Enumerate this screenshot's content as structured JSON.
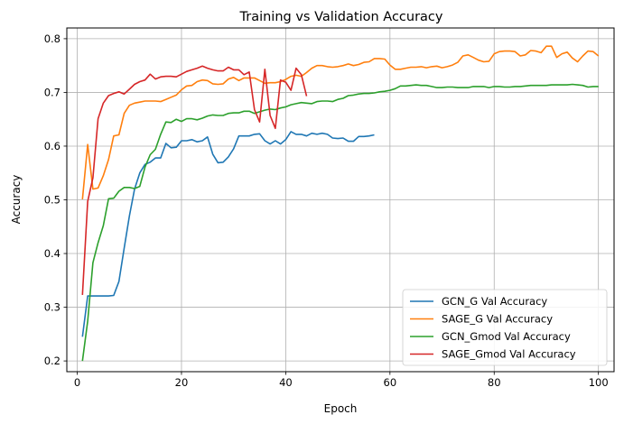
{
  "chart_data": {
    "type": "line",
    "title": "Training vs Validation Accuracy",
    "xlabel": "Epoch",
    "ylabel": "Accuracy",
    "xlim": [
      -2,
      103
    ],
    "ylim": [
      0.18,
      0.82
    ],
    "xticks": [
      0,
      20,
      40,
      60,
      80,
      100
    ],
    "yticks": [
      0.2,
      0.3,
      0.4,
      0.5,
      0.6,
      0.7,
      0.8
    ],
    "grid": true,
    "legend_position": "lower-right",
    "series": [
      {
        "name": "GCN_G Val Accuracy",
        "color": "#1f77b4",
        "x": [
          1,
          2,
          3,
          4,
          5,
          6,
          7,
          8,
          9,
          10,
          11,
          12,
          13,
          14,
          15,
          16,
          17,
          18,
          19,
          20,
          21,
          22,
          23,
          24,
          25,
          26,
          27,
          28,
          29,
          30,
          31,
          32,
          33,
          34,
          35,
          36,
          37,
          38,
          39,
          40,
          41,
          42,
          43,
          44,
          45,
          46,
          47,
          48,
          49,
          50,
          51,
          52,
          53,
          54,
          55,
          56,
          57
        ],
        "y": [
          0.245,
          0.321,
          0.321,
          0.321,
          0.321,
          0.321,
          0.322,
          0.348,
          0.41,
          0.47,
          0.52,
          0.55,
          0.566,
          0.57,
          0.578,
          0.578,
          0.605,
          0.597,
          0.598,
          0.61,
          0.61,
          0.612,
          0.608,
          0.61,
          0.617,
          0.585,
          0.569,
          0.57,
          0.58,
          0.595,
          0.619,
          0.619,
          0.619,
          0.622,
          0.623,
          0.61,
          0.604,
          0.61,
          0.604,
          0.612,
          0.627,
          0.622,
          0.622,
          0.619,
          0.624,
          0.622,
          0.624,
          0.622,
          0.615,
          0.614,
          0.615,
          0.609,
          0.609,
          0.618,
          0.618,
          0.619,
          0.621
        ]
      },
      {
        "name": "SAGE_G Val Accuracy",
        "color": "#ff7f0e",
        "x": [
          1,
          2,
          3,
          4,
          5,
          6,
          7,
          8,
          9,
          10,
          11,
          12,
          13,
          14,
          15,
          16,
          17,
          18,
          19,
          20,
          21,
          22,
          23,
          24,
          25,
          26,
          27,
          28,
          29,
          30,
          31,
          32,
          33,
          34,
          35,
          36,
          37,
          38,
          39,
          40,
          41,
          42,
          43,
          44,
          45,
          46,
          47,
          48,
          49,
          50,
          51,
          52,
          53,
          54,
          55,
          56,
          57,
          58,
          59,
          60,
          61,
          62,
          63,
          64,
          65,
          66,
          67,
          68,
          69,
          70,
          71,
          72,
          73,
          74,
          75,
          76,
          77,
          78,
          79,
          80,
          81,
          82,
          83,
          84,
          85,
          86,
          87,
          88,
          89,
          90,
          91,
          92,
          93,
          94,
          95,
          96,
          97,
          98,
          99,
          100
        ],
        "y": [
          0.501,
          0.603,
          0.52,
          0.522,
          0.545,
          0.575,
          0.619,
          0.621,
          0.661,
          0.676,
          0.68,
          0.682,
          0.684,
          0.684,
          0.684,
          0.683,
          0.687,
          0.691,
          0.695,
          0.705,
          0.712,
          0.713,
          0.72,
          0.723,
          0.722,
          0.716,
          0.715,
          0.716,
          0.725,
          0.728,
          0.722,
          0.727,
          0.727,
          0.727,
          0.722,
          0.717,
          0.718,
          0.718,
          0.72,
          0.724,
          0.73,
          0.732,
          0.73,
          0.737,
          0.745,
          0.75,
          0.75,
          0.748,
          0.747,
          0.748,
          0.75,
          0.753,
          0.75,
          0.752,
          0.756,
          0.757,
          0.763,
          0.763,
          0.762,
          0.751,
          0.743,
          0.743,
          0.745,
          0.747,
          0.747,
          0.748,
          0.746,
          0.748,
          0.749,
          0.746,
          0.748,
          0.751,
          0.756,
          0.768,
          0.77,
          0.765,
          0.76,
          0.757,
          0.758,
          0.772,
          0.776,
          0.777,
          0.777,
          0.776,
          0.768,
          0.77,
          0.778,
          0.777,
          0.774,
          0.786,
          0.786,
          0.765,
          0.772,
          0.775,
          0.764,
          0.757,
          0.768,
          0.777,
          0.776,
          0.768
        ]
      },
      {
        "name": "GCN_Gmod Val Accuracy",
        "color": "#2ca02c",
        "x": [
          1,
          2,
          3,
          4,
          5,
          6,
          7,
          8,
          9,
          10,
          11,
          12,
          13,
          14,
          15,
          16,
          17,
          18,
          19,
          20,
          21,
          22,
          23,
          24,
          25,
          26,
          27,
          28,
          29,
          30,
          31,
          32,
          33,
          34,
          35,
          36,
          37,
          38,
          39,
          40,
          41,
          42,
          43,
          44,
          45,
          46,
          47,
          48,
          49,
          50,
          51,
          52,
          53,
          54,
          55,
          56,
          57,
          58,
          59,
          60,
          61,
          62,
          63,
          64,
          65,
          66,
          67,
          68,
          69,
          70,
          71,
          72,
          73,
          74,
          75,
          76,
          77,
          78,
          79,
          80,
          81,
          82,
          83,
          84,
          85,
          86,
          87,
          88,
          89,
          90,
          91,
          92,
          93,
          94,
          95,
          96,
          97,
          98,
          99,
          100
        ],
        "y": [
          0.2,
          0.274,
          0.383,
          0.42,
          0.452,
          0.502,
          0.503,
          0.516,
          0.523,
          0.523,
          0.521,
          0.525,
          0.561,
          0.584,
          0.594,
          0.622,
          0.645,
          0.644,
          0.65,
          0.646,
          0.651,
          0.651,
          0.649,
          0.652,
          0.656,
          0.658,
          0.657,
          0.657,
          0.661,
          0.662,
          0.662,
          0.665,
          0.665,
          0.661,
          0.664,
          0.667,
          0.669,
          0.668,
          0.671,
          0.673,
          0.677,
          0.679,
          0.681,
          0.68,
          0.679,
          0.683,
          0.684,
          0.684,
          0.683,
          0.687,
          0.689,
          0.694,
          0.695,
          0.697,
          0.698,
          0.698,
          0.699,
          0.701,
          0.702,
          0.704,
          0.707,
          0.712,
          0.712,
          0.713,
          0.714,
          0.713,
          0.713,
          0.711,
          0.709,
          0.709,
          0.71,
          0.71,
          0.709,
          0.709,
          0.709,
          0.711,
          0.711,
          0.711,
          0.709,
          0.711,
          0.711,
          0.71,
          0.71,
          0.711,
          0.711,
          0.712,
          0.713,
          0.713,
          0.713,
          0.713,
          0.714,
          0.714,
          0.714,
          0.714,
          0.715,
          0.714,
          0.713,
          0.71,
          0.711,
          0.711
        ]
      },
      {
        "name": "SAGE_Gmod Val Accuracy",
        "color": "#d62728",
        "x": [
          1,
          2,
          3,
          4,
          5,
          6,
          7,
          8,
          9,
          10,
          11,
          12,
          13,
          14,
          15,
          16,
          17,
          18,
          19,
          20,
          21,
          22,
          23,
          24,
          25,
          26,
          27,
          28,
          29,
          30,
          31,
          32,
          33,
          34,
          35,
          36,
          37,
          38,
          39,
          40,
          41,
          42,
          43,
          44
        ],
        "y": [
          0.323,
          0.497,
          0.541,
          0.651,
          0.68,
          0.694,
          0.698,
          0.701,
          0.697,
          0.706,
          0.715,
          0.72,
          0.723,
          0.734,
          0.725,
          0.729,
          0.73,
          0.73,
          0.729,
          0.734,
          0.739,
          0.742,
          0.745,
          0.749,
          0.745,
          0.742,
          0.74,
          0.74,
          0.747,
          0.742,
          0.742,
          0.733,
          0.738,
          0.668,
          0.645,
          0.743,
          0.657,
          0.633,
          0.723,
          0.719,
          0.704,
          0.745,
          0.733,
          0.693
        ]
      }
    ]
  }
}
